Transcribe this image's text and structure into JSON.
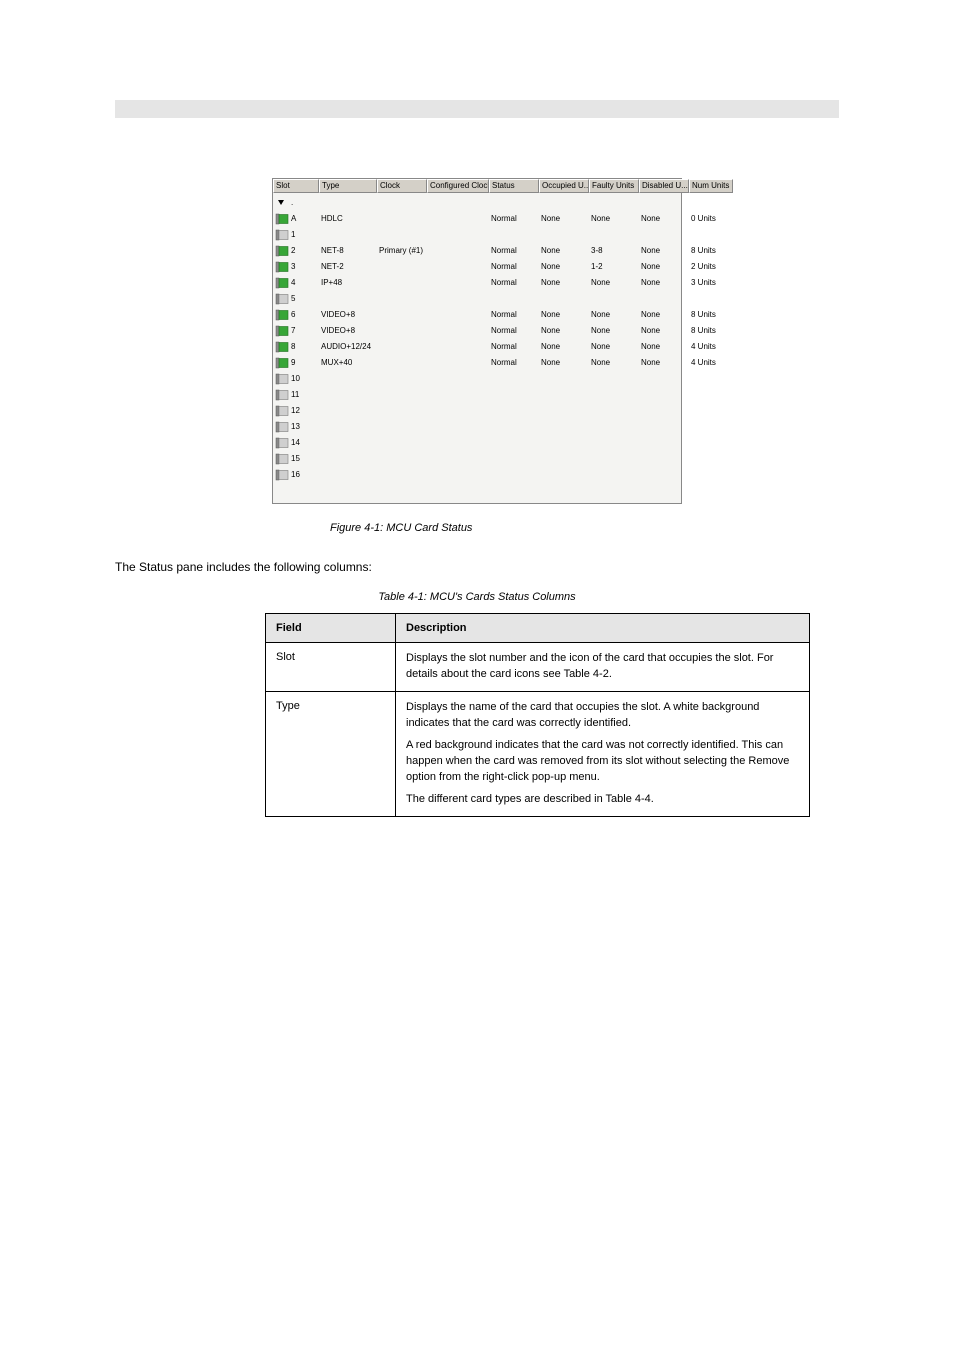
{
  "ui": {
    "headers": [
      "Slot",
      "Type",
      "Clock",
      "Configured Clock",
      "Status",
      "Occupied U...",
      "Faulty Units",
      "Disabled U...",
      "Num Units"
    ],
    "rows": [
      {
        "slot": ".",
        "icon": "arrow",
        "type": "",
        "clock": "",
        "status": "",
        "occ": "",
        "faulty": "",
        "dis": "",
        "num": ""
      },
      {
        "slot": "A",
        "icon": "green",
        "type": "HDLC",
        "clock": "",
        "status": "Normal",
        "occ": "None",
        "faulty": "None",
        "dis": "None",
        "num": "0 Units"
      },
      {
        "slot": "1",
        "icon": "gray",
        "type": "",
        "clock": "",
        "status": "",
        "occ": "",
        "faulty": "",
        "dis": "",
        "num": ""
      },
      {
        "slot": "2",
        "icon": "green",
        "type": "NET-8",
        "clock": "Primary (#1)",
        "status": "Normal",
        "occ": "None",
        "faulty": "3-8",
        "dis": "None",
        "num": "8 Units"
      },
      {
        "slot": "3",
        "icon": "green",
        "type": "NET-2",
        "clock": "",
        "status": "Normal",
        "occ": "None",
        "faulty": "1-2",
        "dis": "None",
        "num": "2 Units"
      },
      {
        "slot": "4",
        "icon": "green",
        "type": "IP+48",
        "clock": "",
        "status": "Normal",
        "occ": "None",
        "faulty": "None",
        "dis": "None",
        "num": "3 Units"
      },
      {
        "slot": "5",
        "icon": "gray",
        "type": "",
        "clock": "",
        "status": "",
        "occ": "",
        "faulty": "",
        "dis": "",
        "num": ""
      },
      {
        "slot": "6",
        "icon": "green",
        "type": "VIDEO+8",
        "clock": "",
        "status": "Normal",
        "occ": "None",
        "faulty": "None",
        "dis": "None",
        "num": "8 Units"
      },
      {
        "slot": "7",
        "icon": "green",
        "type": "VIDEO+8",
        "clock": "",
        "status": "Normal",
        "occ": "None",
        "faulty": "None",
        "dis": "None",
        "num": "8 Units"
      },
      {
        "slot": "8",
        "icon": "green",
        "type": "AUDIO+12/24",
        "clock": "",
        "status": "Normal",
        "occ": "None",
        "faulty": "None",
        "dis": "None",
        "num": "4 Units"
      },
      {
        "slot": "9",
        "icon": "green",
        "type": "MUX+40",
        "clock": "",
        "status": "Normal",
        "occ": "None",
        "faulty": "None",
        "dis": "None",
        "num": "4 Units"
      },
      {
        "slot": "10",
        "icon": "gray",
        "type": "",
        "clock": "",
        "status": "",
        "occ": "",
        "faulty": "",
        "dis": "",
        "num": ""
      },
      {
        "slot": "11",
        "icon": "gray",
        "type": "",
        "clock": "",
        "status": "",
        "occ": "",
        "faulty": "",
        "dis": "",
        "num": ""
      },
      {
        "slot": "12",
        "icon": "gray",
        "type": "",
        "clock": "",
        "status": "",
        "occ": "",
        "faulty": "",
        "dis": "",
        "num": ""
      },
      {
        "slot": "13",
        "icon": "gray",
        "type": "",
        "clock": "",
        "status": "",
        "occ": "",
        "faulty": "",
        "dis": "",
        "num": ""
      },
      {
        "slot": "14",
        "icon": "gray",
        "type": "",
        "clock": "",
        "status": "",
        "occ": "",
        "faulty": "",
        "dis": "",
        "num": ""
      },
      {
        "slot": "15",
        "icon": "gray",
        "type": "",
        "clock": "",
        "status": "",
        "occ": "",
        "faulty": "",
        "dis": "",
        "num": ""
      },
      {
        "slot": "16",
        "icon": "gray",
        "type": "",
        "clock": "",
        "status": "",
        "occ": "",
        "faulty": "",
        "dis": "",
        "num": ""
      }
    ],
    "colors": {
      "green_fill": "#37a637",
      "green_stroke": "#1e6e1e",
      "gray_fill": "#cfcfcf",
      "gray_stroke": "#7a7a7a",
      "arrow": "#000000"
    }
  },
  "caption": "Figure 4-1: MCU Card Status",
  "para1": "The Status pane includes the following columns:",
  "table_title": "Table 4-1: MCU's Cards Status Columns",
  "table": {
    "head": [
      "Field",
      "Description"
    ],
    "rows": [
      {
        "field": "Slot",
        "paras": [
          "Displays the slot number and the icon of the card that occupies the slot. For details about the card icons see Table 4-2."
        ]
      },
      {
        "field": "Type",
        "paras": [
          "Displays the name of the card that occupies the slot. A white background indicates that the card was correctly identified.",
          "A red background indicates that the card was not correctly identified. This can happen when the card was removed from its slot without selecting the Remove option from the right-click pop-up menu.",
          "The different card types are described in Table 4-4."
        ]
      }
    ]
  }
}
